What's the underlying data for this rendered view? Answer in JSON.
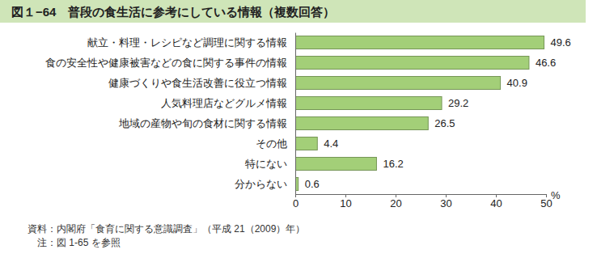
{
  "chart_data": {
    "type": "bar",
    "orientation": "horizontal",
    "title": "図１−64　普段の食生活に参考にしている情報（複数回答）",
    "categories": [
      "献立・料理・レシピなど調理に関する情報",
      "食の安全性や健康被害などの食に関する事件の情報",
      "健康づくりや食生活改善に役立つ情報",
      "人気料理店などグルメ情報",
      "地域の産物や旬の食材に関する情報",
      "その他",
      "特にない",
      "分からない"
    ],
    "values": [
      49.6,
      46.6,
      40.9,
      29.2,
      26.5,
      4.4,
      16.2,
      0.6
    ],
    "color": "#a3cf78",
    "xlim": [
      0,
      50
    ],
    "xticks": [
      0,
      10,
      20,
      30,
      40,
      50
    ],
    "xlabel": "%",
    "grid": false,
    "data_labels": true,
    "annotations": [
      "資料：内閣府「食育に関する意識調査」（平成 21（2009）年）",
      "注：図 1-65 を参照"
    ]
  }
}
